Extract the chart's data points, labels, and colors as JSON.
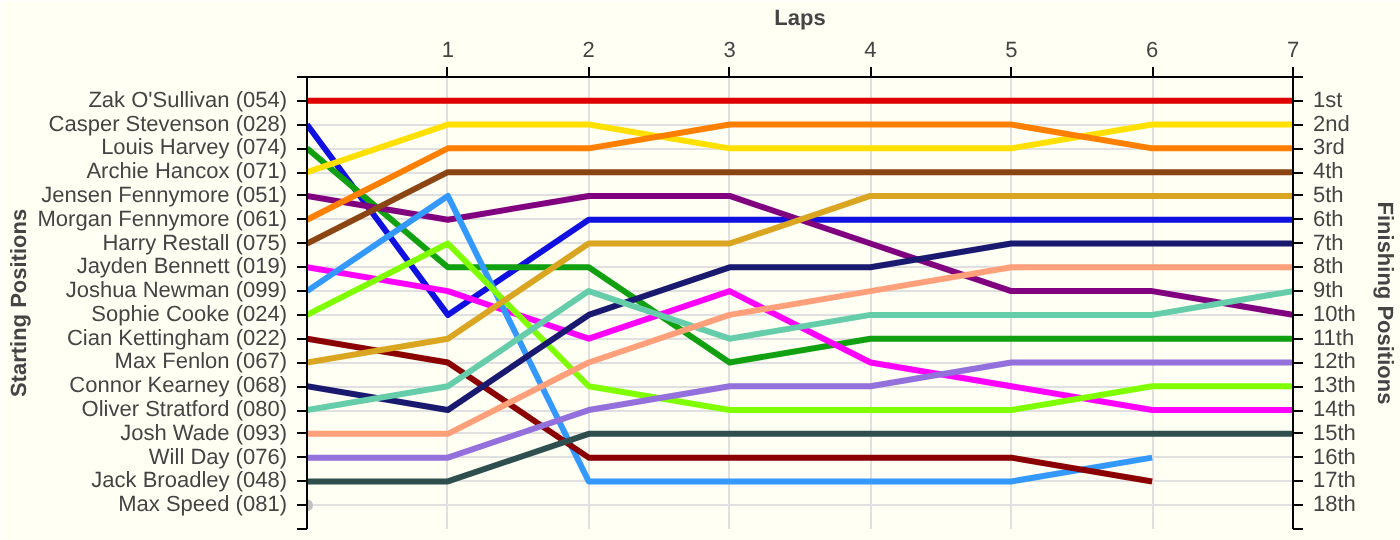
{
  "chart_data": {
    "type": "line",
    "xlabel": "Laps",
    "ylabel": "Finishing Positions",
    "annotations": [
      "Starting Positions"
    ],
    "xlim": [
      0,
      7
    ],
    "xticks": [
      1,
      2,
      3,
      4,
      5,
      6,
      7
    ],
    "ylim": [
      19,
      0
    ],
    "yticks": [
      {
        "value": 0,
        "label": null
      },
      {
        "value": 1,
        "label": "1st"
      },
      {
        "value": 2,
        "label": "2nd"
      },
      {
        "value": 3,
        "label": "3rd"
      },
      {
        "value": 4,
        "label": "4th"
      },
      {
        "value": 5,
        "label": "5th"
      },
      {
        "value": 6,
        "label": "6th"
      },
      {
        "value": 7,
        "label": "7th"
      },
      {
        "value": 8,
        "label": "8th"
      },
      {
        "value": 9,
        "label": "9th"
      },
      {
        "value": 10,
        "label": "10th"
      },
      {
        "value": 11,
        "label": "11th"
      },
      {
        "value": 12,
        "label": "12th"
      },
      {
        "value": 13,
        "label": "13th"
      },
      {
        "value": 14,
        "label": "14th"
      },
      {
        "value": 15,
        "label": "15th"
      },
      {
        "value": 16,
        "label": "16th"
      },
      {
        "value": 17,
        "label": "17th"
      },
      {
        "value": 18,
        "label": "18th"
      },
      {
        "value": 19,
        "label": null
      }
    ],
    "x": [
      0,
      1,
      2,
      3,
      4,
      5,
      6,
      7
    ],
    "grid": true,
    "marker": "none",
    "line_style": "solid",
    "legend": false,
    "series": [
      {
        "name": "Zak O'Sullivan (054)",
        "color": "#e00000",
        "values": [
          1,
          1,
          1,
          1,
          1,
          1,
          1,
          1
        ]
      },
      {
        "name": "Casper Stevenson (028)",
        "color": "#1010e0",
        "values": [
          2,
          10,
          6,
          6,
          6,
          6,
          6,
          6
        ]
      },
      {
        "name": "Louis Harvey (074)",
        "color": "#10a010",
        "values": [
          3,
          8,
          8,
          12,
          11,
          11,
          11,
          11
        ]
      },
      {
        "name": "Archie Hancox (071)",
        "color": "#ffe000",
        "values": [
          4,
          2,
          2,
          3,
          3,
          3,
          2,
          2
        ]
      },
      {
        "name": "Jensen Fennymore (051)",
        "color": "#800080",
        "values": [
          5,
          6,
          5,
          5,
          7,
          9,
          9,
          10
        ]
      },
      {
        "name": "Morgan Fennymore (061)",
        "color": "#ff8000",
        "values": [
          6,
          3,
          3,
          2,
          2,
          2,
          3,
          3
        ]
      },
      {
        "name": "Harry Restall (075)",
        "color": "#8b4513",
        "values": [
          7,
          4,
          4,
          4,
          4,
          4,
          4,
          4
        ]
      },
      {
        "name": "Jayden Bennett (019)",
        "color": "#ff00ff",
        "values": [
          8,
          9,
          11,
          9,
          12,
          13,
          14,
          14
        ]
      },
      {
        "name": "Joshua Newman (099)",
        "color": "#3399ff",
        "values": [
          9,
          5,
          17,
          17,
          17,
          17,
          16,
          null
        ]
      },
      {
        "name": "Sophie Cooke (024)",
        "color": "#80ff00",
        "values": [
          10,
          7,
          13,
          14,
          14,
          14,
          13,
          13
        ]
      },
      {
        "name": "Cian Kettingham (022)",
        "color": "#8b0000",
        "values": [
          11,
          12,
          16,
          16,
          16,
          16,
          17,
          null
        ]
      },
      {
        "name": "Max Fenlon (067)",
        "color": "#daa520",
        "values": [
          12,
          11,
          7,
          7,
          5,
          5,
          5,
          5
        ]
      },
      {
        "name": "Connor Kearney (068)",
        "color": "#191970",
        "values": [
          13,
          14,
          10,
          8,
          8,
          7,
          7,
          7
        ]
      },
      {
        "name": "Oliver Stratford (080)",
        "color": "#66cdaa",
        "values": [
          14,
          13,
          9,
          11,
          10,
          10,
          10,
          9
        ]
      },
      {
        "name": "Josh Wade (093)",
        "color": "#ffa07a",
        "values": [
          15,
          15,
          12,
          10,
          9,
          8,
          8,
          8
        ]
      },
      {
        "name": "Will Day (076)",
        "color": "#9370db",
        "values": [
          16,
          16,
          14,
          13,
          13,
          12,
          12,
          12
        ]
      },
      {
        "name": "Jack Broadley (048)",
        "color": "#2f4f4f",
        "values": [
          17,
          17,
          15,
          15,
          15,
          15,
          15,
          15
        ]
      },
      {
        "name": "Max Speed (081)",
        "marker": "circle",
        "color": "#c0c0c0",
        "values": [
          18,
          null,
          null,
          null,
          null,
          null,
          null,
          null
        ]
      }
    ]
  }
}
